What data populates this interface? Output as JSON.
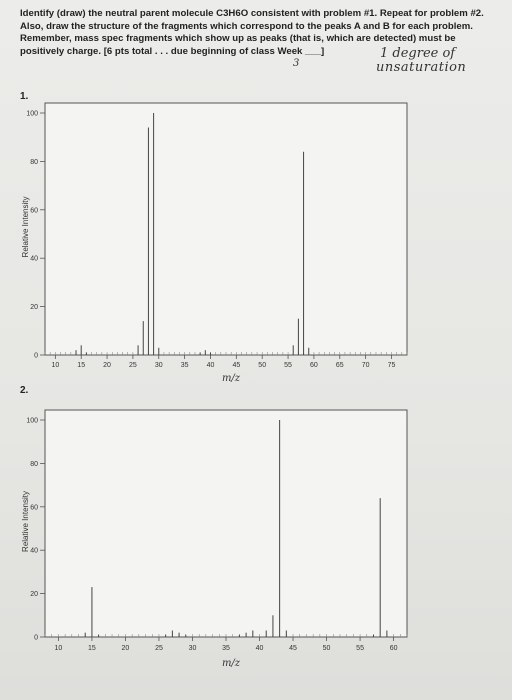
{
  "instructions": {
    "line1": "Identify (draw) the neutral parent molecule C3H6O consistent with problem #1.  Repeat for problem #2.",
    "line2": "Also, draw the structure of the fragments which correspond to the peaks A and B for each problem.",
    "line3": "Remember, mass spec fragments which show up as peaks (that is, which are detected) must be",
    "line4": "positively charge.  [6 pts total . . . due beginning of class Week"
  },
  "annotations": {
    "week_number": "3",
    "note_line1": "1 degree of",
    "note_line2": "unsaturation"
  },
  "problems": [
    {
      "number": "1."
    },
    {
      "number": "2."
    }
  ],
  "colors": {
    "paper": "#e6e6e3",
    "peak": "#444444",
    "frame": "#555555"
  },
  "chart_data": [
    {
      "type": "bar",
      "title": "",
      "xlabel": "m/z",
      "ylabel": "Relative Intensity",
      "xlim": [
        8,
        78
      ],
      "ylim": [
        0,
        100
      ],
      "xticks": [
        10,
        15,
        20,
        25,
        30,
        35,
        40,
        45,
        50,
        55,
        60,
        65,
        70,
        75
      ],
      "yticks": [
        0,
        20,
        40,
        60,
        80,
        100
      ],
      "peaks": [
        {
          "x": 14,
          "y": 2
        },
        {
          "x": 15,
          "y": 4
        },
        {
          "x": 16,
          "y": 1
        },
        {
          "x": 26,
          "y": 4
        },
        {
          "x": 27,
          "y": 14
        },
        {
          "x": 28,
          "y": 94
        },
        {
          "x": 29,
          "y": 100
        },
        {
          "x": 30,
          "y": 3
        },
        {
          "x": 38,
          "y": 1
        },
        {
          "x": 39,
          "y": 2
        },
        {
          "x": 40,
          "y": 1
        },
        {
          "x": 56,
          "y": 4
        },
        {
          "x": 57,
          "y": 15
        },
        {
          "x": 58,
          "y": 84
        },
        {
          "x": 59,
          "y": 3
        }
      ]
    },
    {
      "type": "bar",
      "title": "",
      "xlabel": "m/z",
      "ylabel": "Relative Intensity",
      "xlim": [
        8,
        62
      ],
      "ylim": [
        0,
        100
      ],
      "xticks": [
        10,
        15,
        20,
        25,
        30,
        35,
        40,
        45,
        50,
        55,
        60
      ],
      "yticks": [
        0,
        20,
        40,
        60,
        80,
        100
      ],
      "peaks": [
        {
          "x": 14,
          "y": 2
        },
        {
          "x": 15,
          "y": 23
        },
        {
          "x": 16,
          "y": 1
        },
        {
          "x": 26,
          "y": 1
        },
        {
          "x": 27,
          "y": 3
        },
        {
          "x": 28,
          "y": 2
        },
        {
          "x": 29,
          "y": 1
        },
        {
          "x": 37,
          "y": 1
        },
        {
          "x": 38,
          "y": 2
        },
        {
          "x": 39,
          "y": 3
        },
        {
          "x": 41,
          "y": 3
        },
        {
          "x": 42,
          "y": 10
        },
        {
          "x": 43,
          "y": 100
        },
        {
          "x": 44,
          "y": 3
        },
        {
          "x": 57,
          "y": 1
        },
        {
          "x": 58,
          "y": 64
        },
        {
          "x": 59,
          "y": 3
        }
      ]
    }
  ]
}
